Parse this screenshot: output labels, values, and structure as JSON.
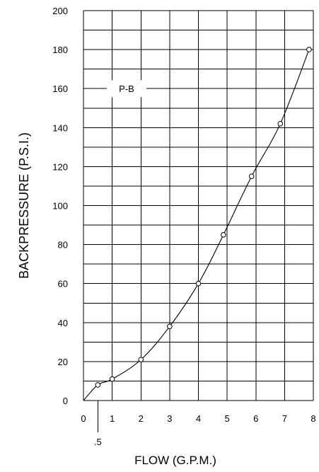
{
  "chart_data": {
    "type": "line",
    "xlabel": "FLOW (G.P.M.)",
    "ylabel": "BACKPRESSURE (P.S.I.)",
    "xlim": [
      0,
      8
    ],
    "ylim": [
      0,
      200
    ],
    "x_ticks": [
      "0",
      "1",
      "2",
      "3",
      "4",
      "5",
      "6",
      "7",
      "8"
    ],
    "y_ticks": [
      "0",
      "20",
      "40",
      "60",
      "80",
      "100",
      "120",
      "140",
      "160",
      "180",
      "200"
    ],
    "x_extra_tick": {
      "value": 0.5,
      "label": ".5"
    },
    "grid": true,
    "series": [
      {
        "name": "P-B",
        "x": [
          0,
          0.5,
          1,
          2,
          3,
          4,
          4.87,
          5.85,
          6.85,
          7.85
        ],
        "y": [
          0,
          8,
          11,
          21,
          38,
          60,
          85,
          115,
          142,
          180
        ],
        "markers": [
          false,
          true,
          true,
          true,
          true,
          true,
          true,
          true,
          true,
          true
        ]
      }
    ],
    "series_label_text": "P-B"
  }
}
